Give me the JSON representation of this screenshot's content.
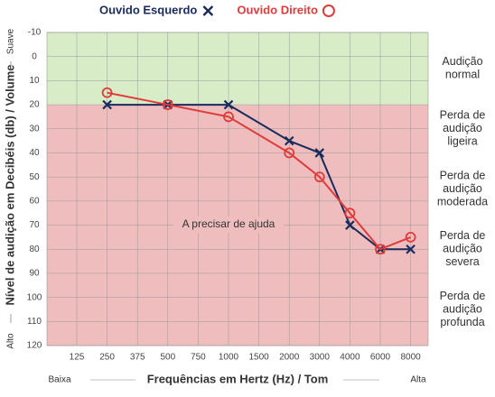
{
  "chart_data": {
    "type": "line",
    "y_label": "Nível de audição em Decibéis (db) / Volume",
    "y_low_label": "Alto",
    "y_high_label": "Suave",
    "x_label": "Frequências em Hertz (Hz) / Tom",
    "x_low_label": "Baixa",
    "x_high_label": "Alta",
    "categories": [
      "125",
      "250",
      "375",
      "500",
      "750",
      "1000",
      "1500",
      "2000",
      "3000",
      "4000",
      "6000",
      "8000"
    ],
    "ylim": [
      -10,
      120
    ],
    "y_inverted": true,
    "yticks": [
      -10,
      0,
      10,
      20,
      30,
      40,
      50,
      60,
      70,
      80,
      90,
      100,
      110,
      120
    ],
    "grid": true,
    "series": [
      {
        "name": "Ouvido Esquerdo",
        "color": "#1b2b5c",
        "marker": "x",
        "x": [
          "250",
          "500",
          "1000",
          "2000",
          "3000",
          "4000",
          "6000",
          "8000"
        ],
        "values": [
          20,
          20,
          20,
          35,
          40,
          70,
          80,
          80
        ]
      },
      {
        "name": "Ouvido Direito",
        "color": "#e03b3b",
        "marker": "o",
        "x": [
          "250",
          "500",
          "1000",
          "2000",
          "3000",
          "4000",
          "6000",
          "8000"
        ],
        "values": [
          15,
          20,
          25,
          40,
          50,
          65,
          80,
          75
        ]
      }
    ],
    "shaded_regions": [
      {
        "from": -10,
        "to": 20,
        "color": "#d8ecc8"
      },
      {
        "from": 20,
        "to": 120,
        "color": "#efbdbd"
      }
    ],
    "hearing_levels": [
      {
        "label": [
          "Audição",
          "normal"
        ],
        "range": [
          -10,
          20
        ]
      },
      {
        "label": [
          "Perda de",
          "audição",
          "ligeira"
        ],
        "range": [
          20,
          40
        ]
      },
      {
        "label": [
          "Perda de",
          "audição",
          "moderada"
        ],
        "range": [
          40,
          70
        ]
      },
      {
        "label": [
          "Perda de",
          "audição",
          "severa"
        ],
        "range": [
          70,
          90
        ]
      },
      {
        "label": [
          "Perda de",
          "audição",
          "profunda"
        ],
        "range": [
          90,
          120
        ]
      }
    ],
    "annotations": [
      {
        "text": "A precisar de ajuda"
      }
    ]
  }
}
